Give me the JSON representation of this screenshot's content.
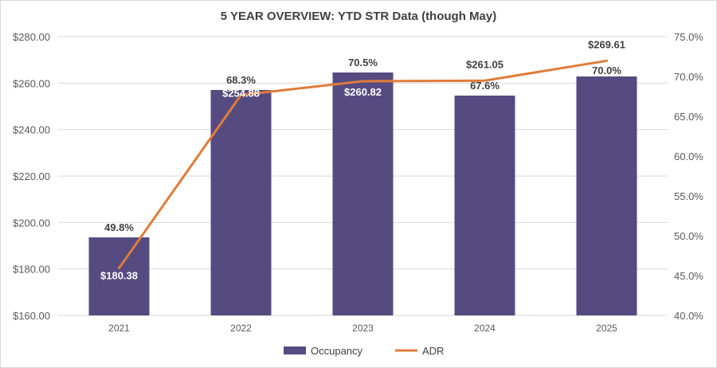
{
  "chart_data": {
    "type": "bar+line",
    "title": "5 YEAR OVERVIEW: YTD STR Data (though May)",
    "categories": [
      "2021",
      "2022",
      "2023",
      "2024",
      "2025"
    ],
    "series": [
      {
        "name": "Occupancy",
        "kind": "bar",
        "axis": "right",
        "values": [
          49.8,
          68.3,
          70.5,
          67.6,
          70.0
        ],
        "labels": [
          "49.8%",
          "68.3%",
          "70.5%",
          "67.6%",
          "70.0%"
        ],
        "color": "#554b80"
      },
      {
        "name": "ADR",
        "kind": "line",
        "axis": "left",
        "values": [
          180.38,
          254.88,
          260.82,
          261.05,
          269.61
        ],
        "labels": [
          "$180.38",
          "$254.88",
          "$260.82",
          "$261.05",
          "$269.61"
        ],
        "color": "#e07b39"
      }
    ],
    "y_left": {
      "min": 160,
      "max": 280,
      "ticks": [
        "$160.00",
        "$180.00",
        "$200.00",
        "$220.00",
        "$240.00",
        "$260.00",
        "$280.00"
      ],
      "tick_values": [
        160,
        180,
        200,
        220,
        240,
        260,
        280
      ]
    },
    "y_right": {
      "min": 40,
      "max": 75,
      "ticks": [
        "40.0%",
        "45.0%",
        "50.0%",
        "55.0%",
        "60.0%",
        "65.0%",
        "70.0%",
        "75.0%"
      ],
      "tick_values": [
        40,
        45,
        50,
        55,
        60,
        65,
        70,
        75
      ]
    },
    "grid": true,
    "legend": "bottom-center",
    "legend_entries": [
      "Occupancy",
      "ADR"
    ]
  }
}
